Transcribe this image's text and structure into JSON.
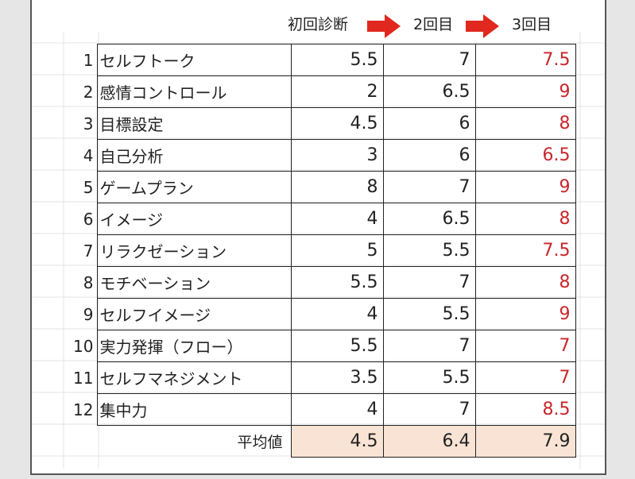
{
  "colors": {
    "accent_arrow": "#e0281e",
    "third_round_text": "#c8262b",
    "average_fill": "#f8e3d4"
  },
  "headers": {
    "initial": "初回診断",
    "second": "2回目",
    "third": "3回目"
  },
  "rows": [
    {
      "no": "1",
      "name": "セルフトーク",
      "initial": "5.5",
      "second": "7",
      "third": "7.5"
    },
    {
      "no": "2",
      "name": "感情コントロール",
      "initial": "2",
      "second": "6.5",
      "third": "9"
    },
    {
      "no": "3",
      "name": "目標設定",
      "initial": "4.5",
      "second": "6",
      "third": "8"
    },
    {
      "no": "4",
      "name": "自己分析",
      "initial": "3",
      "second": "6",
      "third": "6.5"
    },
    {
      "no": "5",
      "name": "ゲームプラン",
      "initial": "8",
      "second": "7",
      "third": "9"
    },
    {
      "no": "6",
      "name": "イメージ",
      "initial": "4",
      "second": "6.5",
      "third": "8"
    },
    {
      "no": "7",
      "name": "リラクゼーション",
      "initial": "5",
      "second": "5.5",
      "third": "7.5"
    },
    {
      "no": "8",
      "name": "モチベーション",
      "initial": "5.5",
      "second": "7",
      "third": "8"
    },
    {
      "no": "9",
      "name": "セルフイメージ",
      "initial": "4",
      "second": "5.5",
      "third": "9"
    },
    {
      "no": "10",
      "name": "実力発揮（フロー）",
      "initial": "5.5",
      "second": "7",
      "third": "7"
    },
    {
      "no": "11",
      "name": "セルフマネジメント",
      "initial": "3.5",
      "second": "5.5",
      "third": "7"
    },
    {
      "no": "12",
      "name": "集中力",
      "initial": "4",
      "second": "7",
      "third": "8.5"
    }
  ],
  "average": {
    "label": "平均値",
    "initial": "4.5",
    "second": "6.4",
    "third": "7.9"
  }
}
